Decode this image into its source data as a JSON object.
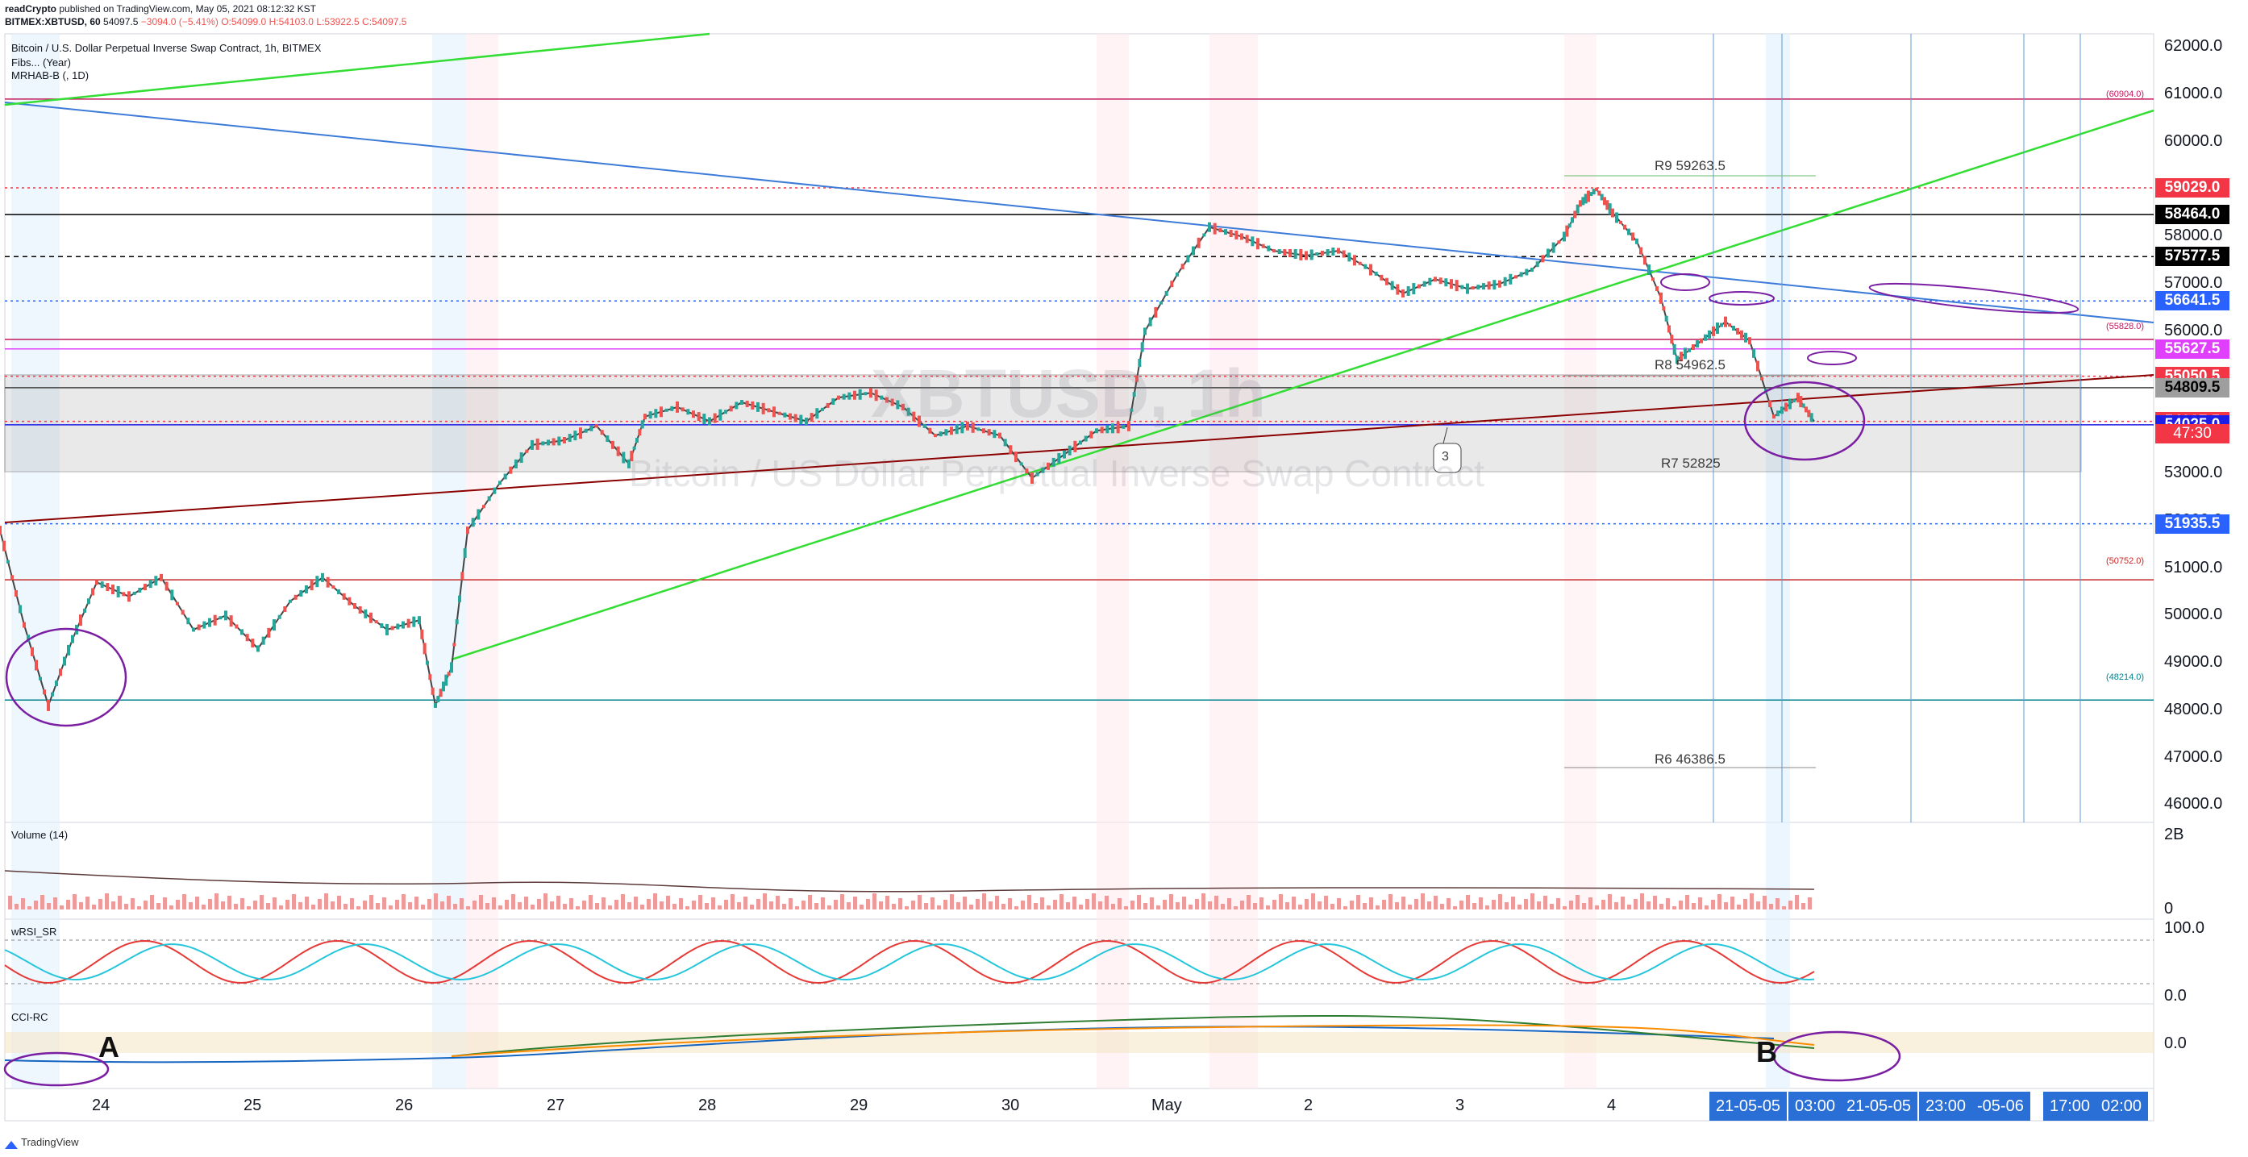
{
  "header": {
    "publisher": "readCrypto",
    "published_on": "published on TradingView.com, May 05, 2021 08:12:32 KST",
    "symbol_line": "BITMEX:XBTUSD, 60",
    "last": "54097.5",
    "change": "−3094.0 (−5.41%)",
    "ohlc_o": "O:54099.0",
    "ohlc_h": "H:54103.0",
    "ohlc_l": "L:53922.5",
    "ohlc_c": "C:54097.5"
  },
  "legend": {
    "title": "Bitcoin / U.S. Dollar Perpetual Inverse Swap Contract, 1h, BITMEX",
    "line2": "Fibs... (Year)",
    "line3": "MRHAB-B (, 1D)"
  },
  "watermark": {
    "symbol": "XBTUSD, 1h",
    "name": "Bitcoin / US Dollar Perpetual Inverse Swap Contract"
  },
  "chart_data": {
    "type": "line",
    "title": "Bitcoin / U.S. Dollar Perpetual Inverse Swap Contract, 1h, BITMEX",
    "y_axis_ticks": [
      62000.0,
      61000.0,
      60000.0,
      59000.0,
      58000.0,
      57000.0,
      56000.0,
      55000.0,
      54000.0,
      53000.0,
      52000.0,
      51000.0,
      50000.0,
      49000.0,
      48000.0,
      47000.0,
      46000.0
    ],
    "y_axis_tick_labels": [
      "62000.0",
      "61000.0",
      "60000.0",
      "59000.0",
      "58000.0",
      "57000.0",
      "56000.0",
      "55000.0",
      "54000.0",
      "53000.0",
      "52000.0",
      "51000.0",
      "50000.0",
      "49000.0",
      "48000.0",
      "47000.0",
      "46000.0"
    ],
    "ylim": [
      45800,
      62400
    ],
    "x_axis_labels": [
      "24",
      "25",
      "26",
      "27",
      "28",
      "29",
      "30",
      "May",
      "2",
      "3",
      "4"
    ],
    "x_axis_highlight": [
      "21-05-05",
      "03:00",
      "21-05-05",
      "23:00",
      "-05-06",
      "17:00",
      "02:00"
    ],
    "price_tags": [
      {
        "value": 59029.0,
        "label": "59029.0",
        "bg": "#f23645",
        "fg": "#ffffff"
      },
      {
        "value": 58464.0,
        "label": "58464.0",
        "bg": "#000000",
        "fg": "#ffffff"
      },
      {
        "value": 57577.5,
        "label": "57577.5",
        "bg": "#000000",
        "fg": "#ffffff"
      },
      {
        "value": 56641.5,
        "label": "56641.5",
        "bg": "#2962ff",
        "fg": "#ffffff"
      },
      {
        "value": 55627.5,
        "label": "55627.5",
        "bg": "#e040fb",
        "fg": "#ffffff"
      },
      {
        "value": 55050.5,
        "label": "55050.5",
        "bg": "#f23645",
        "fg": "#ffffff"
      },
      {
        "value": 54809.5,
        "label": "54809.5",
        "bg": "#9e9e9e",
        "fg": "#000000"
      },
      {
        "value": 54097.5,
        "label": "54097.5",
        "bg": "#f23645",
        "fg": "#ffffff"
      },
      {
        "value": 54025.0,
        "label": "54025.0",
        "bg": "#1e1ee6",
        "fg": "#ffffff"
      },
      {
        "value": 51935.5,
        "label": "51935.5",
        "bg": "#2962ff",
        "fg": "#ffffff"
      }
    ],
    "countdown": "47:30",
    "small_levels": [
      {
        "value": 60904.0,
        "label": "(60904.0)",
        "color": "#c2185b"
      },
      {
        "value": 55828.0,
        "label": "(55828.0)",
        "color": "#c2185b"
      },
      {
        "value": 50752.0,
        "label": "(50752.0)",
        "color": "#c62828"
      },
      {
        "value": 48214.0,
        "label": "(48214.0)",
        "color": "#00838f"
      }
    ],
    "pivot_labels": [
      {
        "value": 59263.5,
        "label": "R9 59263.5"
      },
      {
        "value": 54962.5,
        "label": "R8 54962.5"
      },
      {
        "value": 52825,
        "label": "R7 52825"
      },
      {
        "value": 46386.5,
        "label": "R6 46386.5"
      }
    ],
    "price_path": [
      [
        0,
        51800
      ],
      [
        30,
        49800
      ],
      [
        60,
        48100
      ],
      [
        90,
        49500
      ],
      [
        120,
        50700
      ],
      [
        160,
        50400
      ],
      [
        200,
        50800
      ],
      [
        240,
        49700
      ],
      [
        280,
        50000
      ],
      [
        320,
        49300
      ],
      [
        360,
        50300
      ],
      [
        400,
        50800
      ],
      [
        440,
        50200
      ],
      [
        480,
        49700
      ],
      [
        520,
        49900
      ],
      [
        540,
        48100
      ],
      [
        560,
        48900
      ],
      [
        580,
        51800
      ],
      [
        620,
        52800
      ],
      [
        660,
        53600
      ],
      [
        700,
        53700
      ],
      [
        740,
        54000
      ],
      [
        780,
        53200
      ],
      [
        800,
        54200
      ],
      [
        840,
        54400
      ],
      [
        880,
        54100
      ],
      [
        920,
        54500
      ],
      [
        960,
        54300
      ],
      [
        1000,
        54100
      ],
      [
        1040,
        54600
      ],
      [
        1080,
        54700
      ],
      [
        1120,
        54400
      ],
      [
        1160,
        53800
      ],
      [
        1200,
        54000
      ],
      [
        1240,
        53800
      ],
      [
        1280,
        52900
      ],
      [
        1320,
        53400
      ],
      [
        1360,
        53900
      ],
      [
        1400,
        54000
      ],
      [
        1420,
        56000
      ],
      [
        1460,
        57200
      ],
      [
        1500,
        58200
      ],
      [
        1540,
        58000
      ],
      [
        1580,
        57700
      ],
      [
        1620,
        57600
      ],
      [
        1660,
        57700
      ],
      [
        1700,
        57300
      ],
      [
        1740,
        56800
      ],
      [
        1780,
        57100
      ],
      [
        1820,
        56900
      ],
      [
        1860,
        57000
      ],
      [
        1900,
        57300
      ],
      [
        1940,
        58000
      ],
      [
        1960,
        58700
      ],
      [
        1980,
        59000
      ],
      [
        2000,
        58500
      ],
      [
        2030,
        57900
      ],
      [
        2060,
        56700
      ],
      [
        2080,
        55400
      ],
      [
        2110,
        55800
      ],
      [
        2140,
        56200
      ],
      [
        2170,
        55800
      ],
      [
        2200,
        54200
      ],
      [
        2230,
        54600
      ],
      [
        2250,
        54097
      ]
    ],
    "annotations": [
      "3"
    ],
    "panes": [
      {
        "name": "Volume (14)",
        "axis": [
          "2B",
          "0"
        ]
      },
      {
        "name": "wRSI_SR",
        "axis": [
          "100.0",
          "0.0"
        ]
      },
      {
        "name": "CCI-RC",
        "axis": [
          "0.0"
        ]
      }
    ],
    "markers": [
      "A",
      "B"
    ]
  },
  "footer": {
    "brand": "TradingView"
  }
}
